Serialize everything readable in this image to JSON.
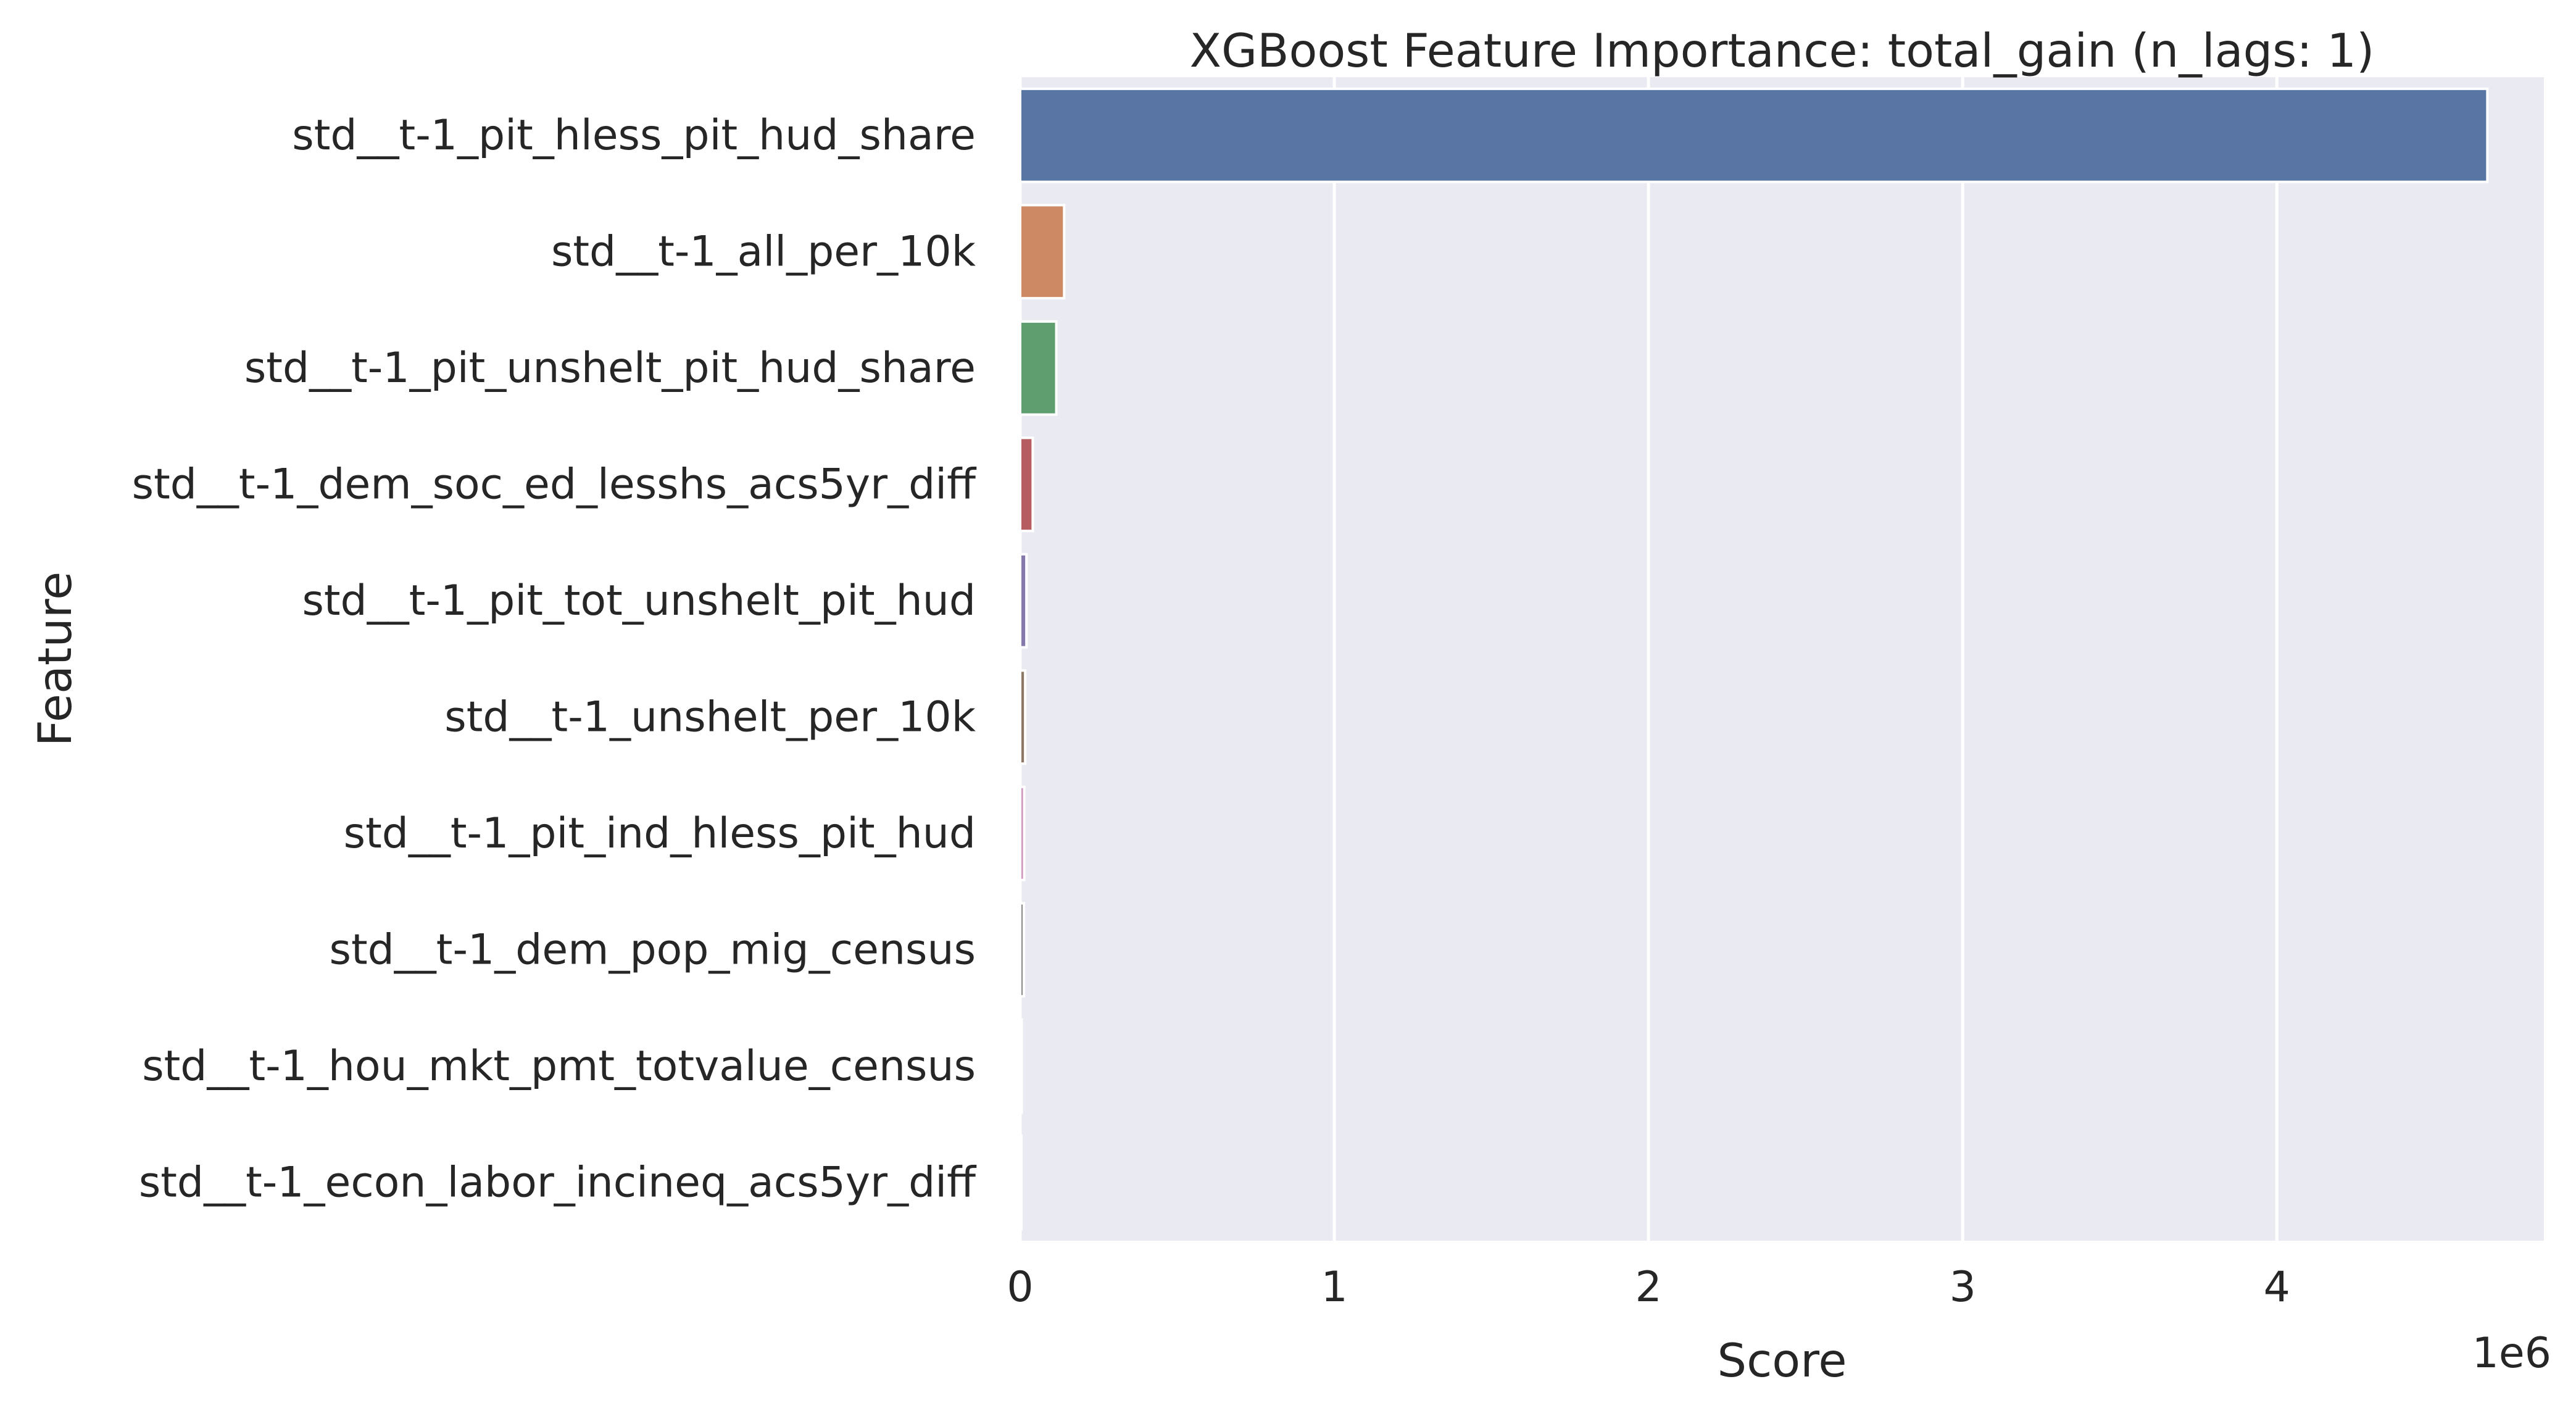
{
  "chart_data": {
    "type": "bar",
    "orientation": "horizontal",
    "title": "XGBoost Feature Importance: total_gain (n_lags: 1)",
    "xlabel": "Score",
    "ylabel": "Feature",
    "x_offset_label": "1e6",
    "xlim": [
      0,
      4.85
    ],
    "x_ticks": [
      0,
      1,
      2,
      3,
      4
    ],
    "grid": true,
    "categories": [
      "std__t-1_pit_hless_pit_hud_share",
      "std__t-1_all_per_10k",
      "std__t-1_pit_unshelt_pit_hud_share",
      "std__t-1_dem_soc_ed_lesshs_acs5yr_diff",
      "std__t-1_pit_tot_unshelt_pit_hud",
      "std__t-1_unshelt_per_10k",
      "std__t-1_pit_ind_hless_pit_hud",
      "std__t-1_dem_pop_mig_census",
      "std__t-1_hou_mkt_pmt_totvalue_census",
      "std__t-1_econ_labor_incineq_acs5yr_diff"
    ],
    "values": [
      4.67,
      0.14,
      0.115,
      0.04,
      0.02,
      0.016,
      0.013,
      0.012,
      0.005,
      0.004
    ],
    "colors": [
      "#5875a4",
      "#cc8963",
      "#5f9e6e",
      "#b55d60",
      "#857aab",
      "#8d7866",
      "#d095bf",
      "#8c8c8c",
      "#c1b37f",
      "#64b5cd"
    ],
    "plot_background": "#eaeaf2",
    "grid_color": "#ffffff"
  }
}
